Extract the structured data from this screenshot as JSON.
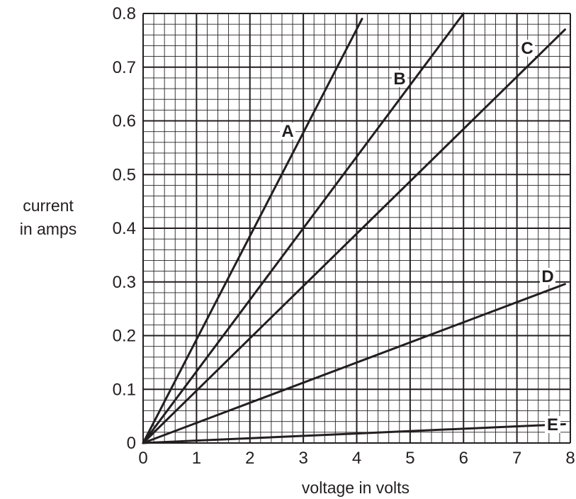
{
  "chart_data": {
    "type": "line",
    "title": "",
    "xlabel": "voltage in volts",
    "ylabel_lines": [
      "current",
      "in amps"
    ],
    "xlim": [
      0,
      8
    ],
    "ylim": [
      0,
      0.8
    ],
    "x_ticks": [
      "0",
      "1",
      "2",
      "3",
      "4",
      "5",
      "6",
      "7",
      "8"
    ],
    "y_ticks": [
      "0",
      "0.1",
      "0.2",
      "0.3",
      "0.4",
      "0.5",
      "0.6",
      "0.7",
      "0.8"
    ],
    "grid": true,
    "minor_grid_divisions": 5,
    "legend": "none",
    "series": [
      {
        "name": "A",
        "x": [
          0,
          4.1
        ],
        "y": [
          0,
          0.79
        ]
      },
      {
        "name": "B",
        "x": [
          0,
          6.0
        ],
        "y": [
          0,
          0.8
        ]
      },
      {
        "name": "C",
        "x": [
          0,
          7.9
        ],
        "y": [
          0,
          0.77
        ]
      },
      {
        "name": "D",
        "x": [
          0,
          7.9
        ],
        "y": [
          0,
          0.296
        ]
      },
      {
        "name": "E",
        "x": [
          0,
          7.9
        ],
        "y": [
          0,
          0.035
        ]
      }
    ]
  }
}
